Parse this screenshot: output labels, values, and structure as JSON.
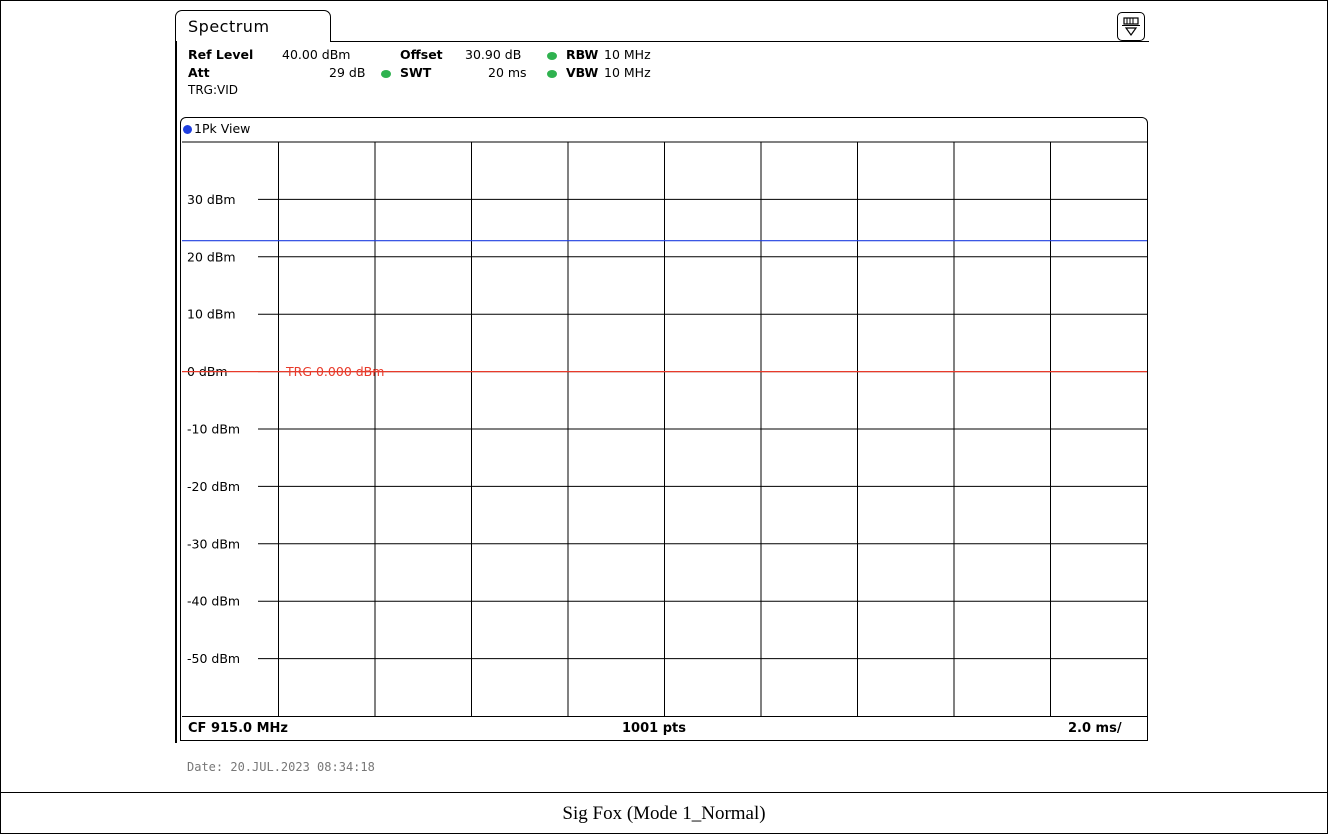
{
  "tab": {
    "label": "Spectrum"
  },
  "header": {
    "ref_level_label": "Ref Level",
    "ref_level_value": "40.00 dBm",
    "offset_label": "Offset",
    "offset_value": "30.90 dB",
    "rbw_label": "RBW",
    "rbw_value": "10 MHz",
    "att_label": "Att",
    "att_value": "29 dB",
    "swt_label": "SWT",
    "swt_value": "20 ms",
    "vbw_label": "VBW",
    "vbw_value": "10 MHz",
    "trg": "TRG:VID"
  },
  "view": {
    "label": "1Pk View"
  },
  "footer": {
    "cf": "CF 915.0 MHz",
    "pts": "1001 pts",
    "span": "2.0 ms/"
  },
  "date": "Date: 20.JUL.2023   08:34:18",
  "caption": "Sig Fox (Mode 1_Normal)",
  "colors": {
    "trace": "#1f3fe0",
    "trigger": "#e83a2a",
    "indicator": "#2fb24f"
  },
  "chart_data": {
    "type": "line",
    "title": "",
    "xlabel": "",
    "ylabel": "",
    "y_ticks": [
      "30 dBm",
      "20 dBm",
      "10 dBm",
      "0 dBm",
      "-10 dBm",
      "-20 dBm",
      "-30 dBm",
      "-40 dBm",
      "-50 dBm"
    ],
    "y_tick_values": [
      30,
      20,
      10,
      0,
      -10,
      -20,
      -30,
      -40,
      -50
    ],
    "ylim": [
      -60,
      40
    ],
    "xlim_ms": [
      0,
      20
    ],
    "x_divisions": 10,
    "grid": true,
    "series": [
      {
        "trace": "1Pk",
        "level_dbm": 22.8
      }
    ],
    "trigger_line": {
      "label": "TRG",
      "value_label": "0.000 dBm",
      "value": 0
    }
  }
}
